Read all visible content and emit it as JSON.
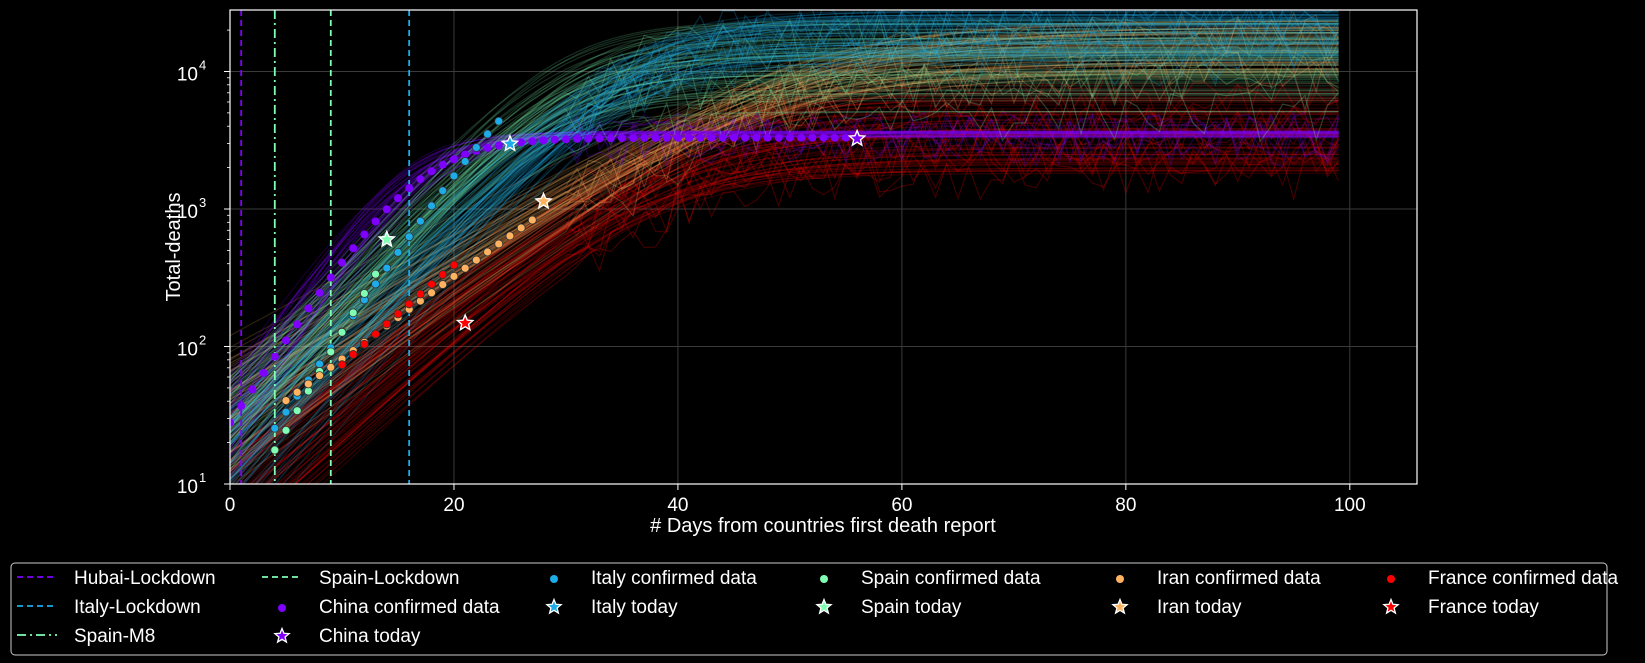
{
  "chart_data": {
    "type": "line",
    "title": "",
    "xlabel": "# Days from countries first death report",
    "ylabel": "Total-deaths",
    "xlim": [
      0,
      106
    ],
    "ylim": [
      10,
      28000
    ],
    "yscale": "log",
    "grid": true,
    "x_ticks": [
      0,
      20,
      40,
      60,
      80,
      100
    ],
    "y_ticks": [
      {
        "value": 10,
        "base": "10",
        "exp": "1"
      },
      {
        "value": 100,
        "base": "10",
        "exp": "2"
      },
      {
        "value": 1000,
        "base": "10",
        "exp": "3"
      },
      {
        "value": 10000,
        "base": "10",
        "exp": "4"
      }
    ],
    "legend_position": "bottom",
    "vlines": [
      {
        "name": "Hubai-Lockdown",
        "x": 1,
        "color": "#8000ff",
        "style": "dashed"
      },
      {
        "name": "Italy-Lockdown",
        "x": 16,
        "color": "#1cace8",
        "style": "dashed"
      },
      {
        "name": "Spain-M8",
        "x": 4,
        "color": "#80ffb4",
        "style": "dashdot"
      },
      {
        "name": "Spain-Lockdown",
        "x": 9,
        "color": "#80ffb4",
        "style": "dashed"
      }
    ],
    "series": [
      {
        "country": "China",
        "color": "#8000ff",
        "confirmed_label": "China confirmed data",
        "today_label": "China today",
        "confirmed": {
          "start": 0,
          "end": 55,
          "x0": 17.0,
          "K": 3300,
          "r": 0.28,
          "d0": 0
        },
        "today": {
          "x": 56,
          "y": 3250
        },
        "model": {
          "end": 99,
          "K_low": 3300,
          "K_high": 3700,
          "r": 0.28,
          "x0": 17.0
        }
      },
      {
        "country": "Italy",
        "color": "#1cace8",
        "confirmed_label": "Italy confirmed data",
        "today_label": "Italy today",
        "confirmed": {
          "start": 4,
          "end": 24,
          "x0": 28.5,
          "K": 19000,
          "r": 0.27,
          "d0": 4
        },
        "today": {
          "x": 25,
          "y": 2980
        },
        "model": {
          "end": 99,
          "K_low": 11000,
          "K_high": 28000,
          "r": 0.2,
          "x0": 35.5
        }
      },
      {
        "country": "Spain",
        "color": "#80ffb4",
        "confirmed_label": "Spain confirmed data",
        "today_label": "Spain today",
        "confirmed": {
          "start": 4,
          "end": 13,
          "x0": 24.0,
          "K": 13000,
          "r": 0.33,
          "d0": 4
        },
        "today": {
          "x": 14,
          "y": 600
        },
        "model": {
          "end": 99,
          "K_low": 5000,
          "K_high": 24000,
          "r": 0.2,
          "x0": 28.5
        }
      },
      {
        "country": "Iran",
        "color": "#ffb360",
        "confirmed_label": "Iran confirmed data",
        "today_label": "Iran today",
        "confirmed": {
          "start": 5,
          "end": 27,
          "x0": 47.0,
          "K": 14500,
          "r": 0.14,
          "d0": 5
        },
        "today": {
          "x": 28,
          "y": 1135
        },
        "model": {
          "end": 99,
          "K_low": 9000,
          "K_high": 24000,
          "r": 0.12,
          "x0": 49.0
        }
      },
      {
        "country": "France",
        "color": "#ff0000",
        "confirmed_label": "France confirmed data",
        "today_label": "France today",
        "confirmed": {
          "start": 10,
          "end": 20,
          "x0": 33.0,
          "K": 4200,
          "r": 0.175,
          "d0": 10
        },
        "today": {
          "x": 21,
          "y": 148
        },
        "model": {
          "end": 99,
          "K_low": 1800,
          "K_high": 8500,
          "r": 0.15,
          "x0": 38.0
        }
      }
    ]
  }
}
